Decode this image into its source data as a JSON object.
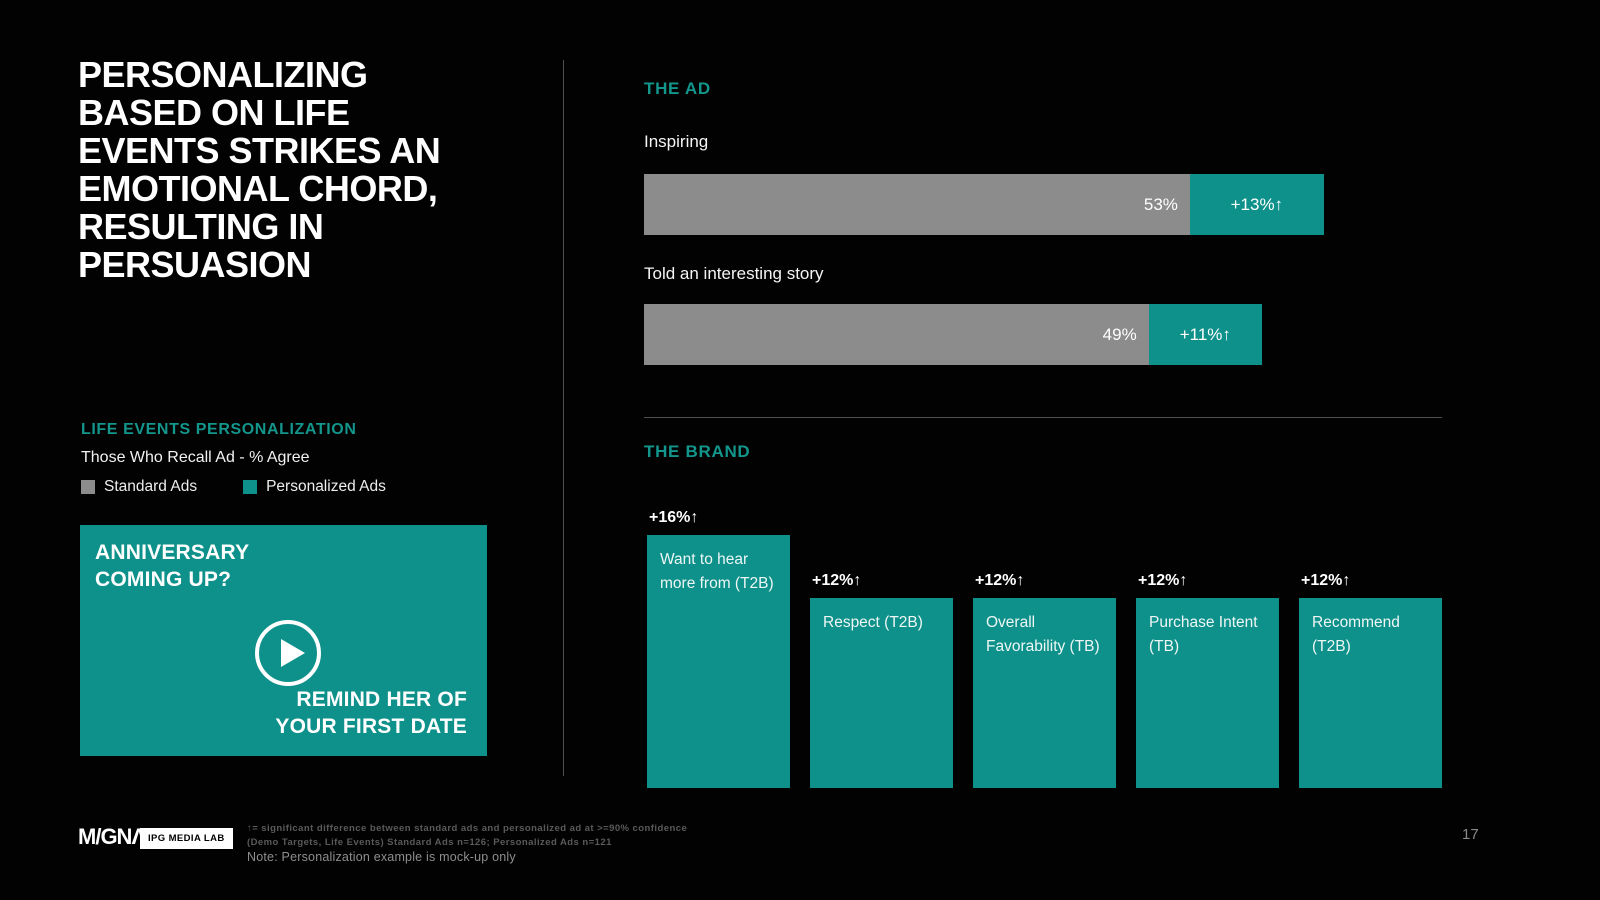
{
  "page": {
    "number": "17",
    "background": "#000000"
  },
  "colors": {
    "teal": "#0e918a",
    "teal_heading": "#13968c",
    "gray_bar": "#8c8c8c",
    "divider": "#4f4f4f"
  },
  "left_panel": {
    "title_lines": [
      "PERSONALIZING",
      "BASED ON LIFE",
      "EVENTS STRIKES AN",
      "EMOTIONAL CHORD,",
      "RESULTING IN",
      "PERSUASION"
    ],
    "section_label": "LIFE EVENTS PERSONALIZATION",
    "subtitle": "Those Who Recall Ad - % Agree",
    "legend": [
      {
        "label": "Standard Ads",
        "color": "#8c8c8c"
      },
      {
        "label": "Personalized Ads",
        "color": "#0e918a"
      }
    ],
    "ad_card": {
      "headline_lines": [
        "ANNIVERSARY",
        "COMING UP?"
      ],
      "cta_lines": [
        "REMIND HER OF",
        "YOUR FIRST DATE"
      ],
      "icon": "play-icon"
    }
  },
  "chart_data": [
    {
      "type": "bar",
      "orientation": "horizontal-stacked",
      "section_title": "THE AD",
      "categories": [
        "Inspiring",
        "Told an interesting story"
      ],
      "series": [
        {
          "name": "Standard Ads",
          "values": [
            53,
            49
          ],
          "labels": [
            "53%",
            "49%"
          ],
          "color": "#8c8c8c"
        },
        {
          "name": "Personalized Ads lift",
          "values": [
            13,
            11
          ],
          "labels": [
            "+13%↑",
            "+11%↑"
          ],
          "color": "#0e918a"
        }
      ],
      "value_unit": "% agree",
      "axis_hidden": true
    },
    {
      "type": "bar",
      "orientation": "vertical",
      "section_title": "THE BRAND",
      "categories": [
        "Want to hear more from (T2B)",
        "Respect (T2B)",
        "Overall Favorability (TB)",
        "Purchase Intent (TB)",
        "Recommend (T2B)"
      ],
      "values": [
        16,
        12,
        12,
        12,
        12
      ],
      "labels": [
        "+16%↑",
        "+12%↑",
        "+12%↑",
        "+12%↑",
        "+12%↑"
      ],
      "color": "#0e918a",
      "axis_hidden": true
    }
  ],
  "footer": {
    "magna_logo": "M/GNΛ",
    "magna_logo_name": "MAGNA",
    "ipg_label": "IPG MEDIA LAB",
    "footnote_lines": [
      "↑= significant difference between standard ads and personalized ad at >=90% confidence",
      "(Demo Targets, Life Events) Standard Ads n=126; Personalized Ads n=121",
      "Note: Personalization example is mock-up only"
    ]
  }
}
